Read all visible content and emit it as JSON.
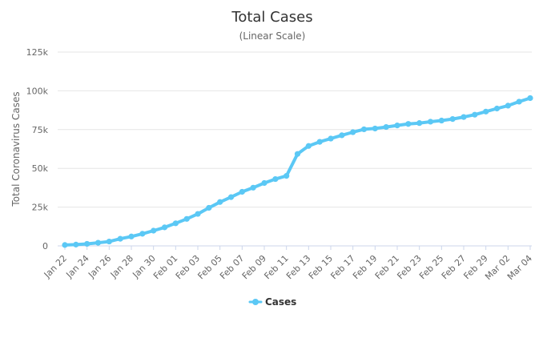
{
  "chart_data": {
    "type": "line",
    "title": "Total Cases",
    "subtitle": "(Linear Scale)",
    "xlabel": "",
    "ylabel": "Total Coronavirus Cases",
    "ylim": [
      0,
      125000
    ],
    "y_ticks": [
      0,
      25000,
      50000,
      75000,
      100000,
      125000
    ],
    "y_tick_labels": [
      "0",
      "25k",
      "50k",
      "75k",
      "100k",
      "125k"
    ],
    "x_tick_labels": [
      "Jan 22",
      "Jan 24",
      "Jan 26",
      "Jan 28",
      "Jan 30",
      "Feb 01",
      "Feb 03",
      "Feb 05",
      "Feb 07",
      "Feb 09",
      "Feb 11",
      "Feb 13",
      "Feb 15",
      "Feb 17",
      "Feb 19",
      "Feb 21",
      "Feb 23",
      "Feb 25",
      "Feb 27",
      "Feb 29",
      "Mar 02",
      "Mar 04"
    ],
    "grid": true,
    "legend_position": "bottom-center",
    "colors": {
      "series": "#5bc8f5",
      "grid": "#e6e6e6",
      "axis": "#ccd6eb"
    },
    "categories": [
      "Jan 22",
      "Jan 23",
      "Jan 24",
      "Jan 25",
      "Jan 26",
      "Jan 27",
      "Jan 28",
      "Jan 29",
      "Jan 30",
      "Jan 31",
      "Feb 01",
      "Feb 02",
      "Feb 03",
      "Feb 04",
      "Feb 05",
      "Feb 06",
      "Feb 07",
      "Feb 08",
      "Feb 09",
      "Feb 10",
      "Feb 11",
      "Feb 12",
      "Feb 13",
      "Feb 14",
      "Feb 15",
      "Feb 16",
      "Feb 17",
      "Feb 18",
      "Feb 19",
      "Feb 20",
      "Feb 21",
      "Feb 22",
      "Feb 23",
      "Feb 24",
      "Feb 25",
      "Feb 26",
      "Feb 27",
      "Feb 28",
      "Feb 29",
      "Mar 01",
      "Mar 02",
      "Mar 03",
      "Mar 04"
    ],
    "series": [
      {
        "name": "Cases",
        "values": [
          580,
          845,
          1317,
          2015,
          2800,
          4581,
          6058,
          7813,
          9821,
          11948,
          14551,
          17389,
          20628,
          24553,
          28276,
          31439,
          34876,
          37552,
          40553,
          43099,
          45134,
          59287,
          64438,
          67100,
          69197,
          71329,
          73332,
          75184,
          75700,
          76677,
          77673,
          78651,
          79205,
          80087,
          80828,
          81820,
          83112,
          84615,
          86604,
          88585,
          90443,
          93016,
          95314
        ]
      }
    ]
  }
}
